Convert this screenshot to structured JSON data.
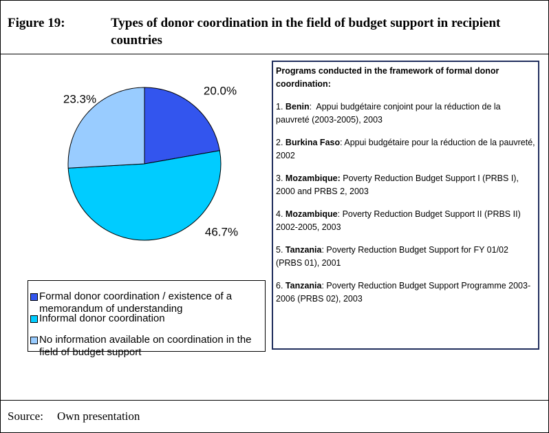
{
  "figure_label": "Figure 19:",
  "chart_data": {
    "type": "pie",
    "title": "Types of donor coordination in the field of budget support in recipient countries",
    "categories": [
      "Formal donor coordination / existence of a memorandum of understanding",
      "Informal donor coordination",
      "No information available on coordination in the field of budget support"
    ],
    "values": [
      20.0,
      46.7,
      23.3
    ],
    "value_labels": [
      "20.0%",
      "46.7%",
      "23.3%"
    ],
    "colors": [
      "#3355ee",
      "#00ccff",
      "#99ccff"
    ]
  },
  "programs": {
    "heading": "Programs conducted in the framework of formal donor coordination:",
    "items": [
      {
        "number": "1.",
        "country": "Benin",
        "text": ":  Appui budgétaire conjoint pour la réduction de la pauvreté (2003-2005), 2003"
      },
      {
        "number": "2.",
        "country": "Burkina Faso",
        "text": ": Appui budgétaire pour la réduction de la pauvreté, 2002"
      },
      {
        "number": "3.",
        "country": "Mozambique:",
        "text": " Poverty Reduction Budget Support I (PRBS I), 2000 and PRBS 2, 2003"
      },
      {
        "number": "4.",
        "country": "Mozambique",
        "text": ": Poverty Reduction Budget Support II (PRBS II) 2002-2005, 2003"
      },
      {
        "number": "5.",
        "country": "Tanzania",
        "text": ": Poverty Reduction Budget Support for FY 01/02 (PRBS 01), 2001"
      },
      {
        "number": "6.",
        "country": "Tanzania",
        "text": ": Poverty Reduction Budget Support Programme 2003-2006 (PRBS 02), 2003"
      }
    ]
  },
  "source": {
    "label": "Source:",
    "text": "Own presentation"
  }
}
